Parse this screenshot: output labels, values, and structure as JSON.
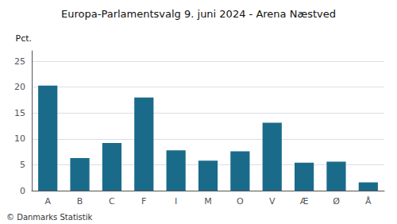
{
  "chart_data": {
    "type": "bar",
    "title": "Europa-Parlamentsvalg 9. juni 2024 - Arena Næstved",
    "ylabel": "Pct.",
    "annotations": [
      "© Danmarks Statistik"
    ],
    "categories": [
      "A",
      "B",
      "C",
      "F",
      "I",
      "M",
      "O",
      "V",
      "Æ",
      "Ø",
      "Å"
    ],
    "values": [
      20.3,
      6.3,
      9.2,
      18.0,
      7.8,
      5.8,
      7.6,
      13.1,
      5.4,
      5.6,
      1.6
    ],
    "color": "#1a6b8a",
    "ylim": [
      0,
      27
    ],
    "yticks": [
      0,
      5,
      10,
      15,
      20,
      25
    ],
    "grid": true
  }
}
